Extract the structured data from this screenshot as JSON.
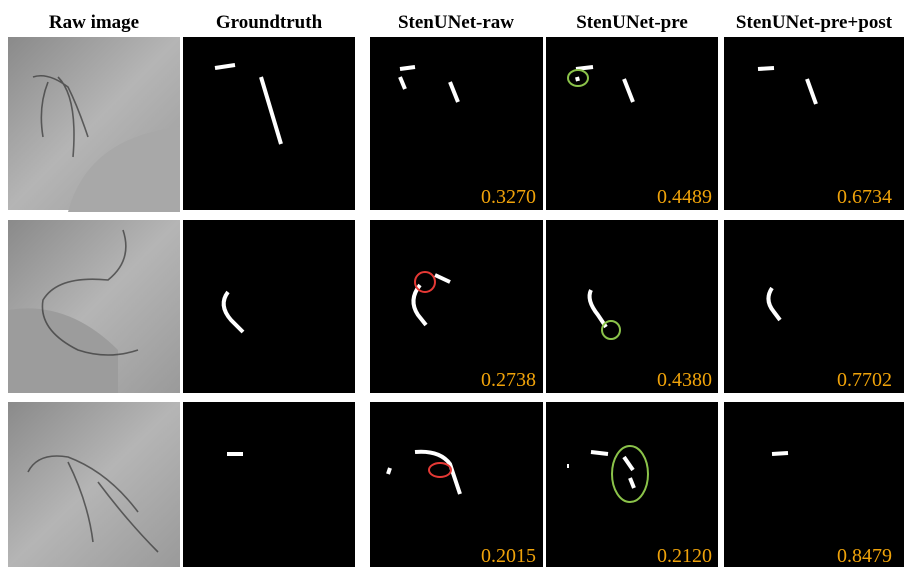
{
  "columns": [
    "Raw image",
    "Groundtruth",
    "StenUNet-raw",
    "StenUNet-pre",
    "StenUNet-pre+post"
  ],
  "rows": [
    {
      "scores": [
        "0.3270",
        "0.4489",
        "0.6734"
      ]
    },
    {
      "scores": [
        "0.2738",
        "0.4380",
        "0.7702"
      ]
    },
    {
      "scores": [
        "0.2015",
        "0.2120",
        "0.8479"
      ]
    }
  ]
}
